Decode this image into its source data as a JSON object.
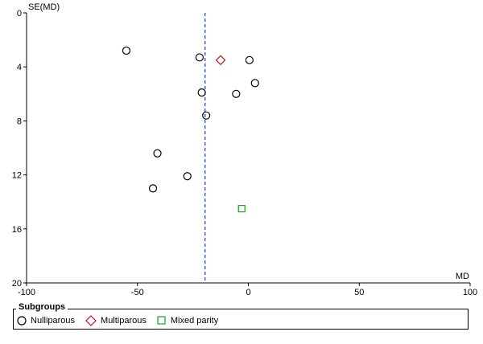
{
  "chart_data": {
    "type": "scatter",
    "title": "",
    "xlabel": "MD",
    "ylabel": "SE(MD)",
    "xlim": [
      -100,
      100
    ],
    "ylim": [
      0,
      20
    ],
    "y_inverted": true,
    "xticks": [
      "-100",
      "-50",
      "0",
      "50",
      "100"
    ],
    "yticks": [
      "0",
      "4",
      "8",
      "12",
      "16",
      "20"
    ],
    "grid": false,
    "reference_line": {
      "x": -19.5,
      "style": "dashed",
      "color": "#1f3fae"
    },
    "legend": {
      "title": "Subgroups",
      "placement": "bottom",
      "entries": [
        {
          "label": "Nulliparous",
          "marker": "circle",
          "color": "#000000"
        },
        {
          "label": "Multiparous",
          "marker": "diamond",
          "color": "#c0141c"
        },
        {
          "label": "Mixed parity",
          "marker": "square",
          "color": "#17a51f"
        }
      ]
    },
    "series": [
      {
        "name": "Nulliparous",
        "marker": "circle",
        "points": [
          {
            "x": -55.0,
            "y": 2.8
          },
          {
            "x": -22.0,
            "y": 3.3
          },
          {
            "x": 0.5,
            "y": 3.5
          },
          {
            "x": 3.0,
            "y": 5.2
          },
          {
            "x": -21.0,
            "y": 5.9
          },
          {
            "x": -5.5,
            "y": 6.0
          },
          {
            "x": -19.0,
            "y": 7.6
          },
          {
            "x": -41.0,
            "y": 10.4
          },
          {
            "x": -27.5,
            "y": 12.1
          },
          {
            "x": -43.0,
            "y": 13.0
          }
        ]
      },
      {
        "name": "Multiparous",
        "marker": "diamond",
        "points": [
          {
            "x": -12.5,
            "y": 3.5
          }
        ]
      },
      {
        "name": "Mixed parity",
        "marker": "square",
        "points": [
          {
            "x": -3.0,
            "y": 14.5
          }
        ]
      }
    ]
  }
}
